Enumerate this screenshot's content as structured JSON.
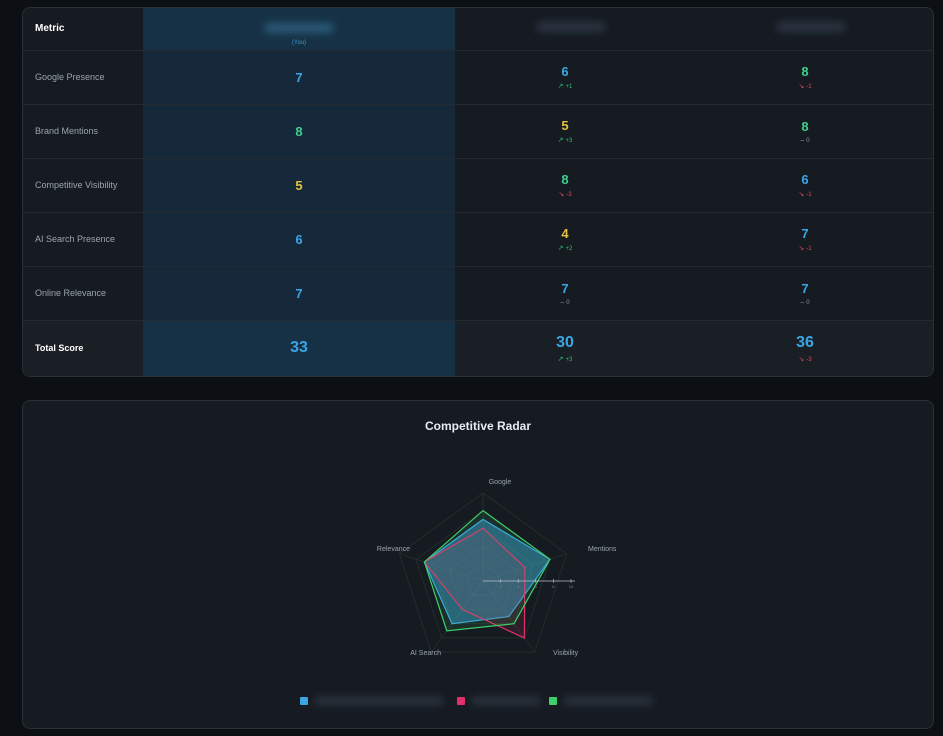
{
  "table": {
    "metric_header": "Metric",
    "you_label": "(You)",
    "rows": [
      {
        "metric": "Google Presence",
        "you": "7",
        "you_color": "blue",
        "c1": {
          "score": "6",
          "color": "blue",
          "delta": "+1",
          "dir": "up"
        },
        "c2": {
          "score": "8",
          "color": "green",
          "delta": "-1",
          "dir": "down"
        }
      },
      {
        "metric": "Brand Mentions",
        "you": "8",
        "you_color": "green",
        "c1": {
          "score": "5",
          "color": "yellow",
          "delta": "+3",
          "dir": "up"
        },
        "c2": {
          "score": "8",
          "color": "green",
          "delta": "0",
          "dir": "flat"
        }
      },
      {
        "metric": "Competitive Visibility",
        "you": "5",
        "you_color": "yellow",
        "c1": {
          "score": "8",
          "color": "green",
          "delta": "-3",
          "dir": "down"
        },
        "c2": {
          "score": "6",
          "color": "blue",
          "delta": "-1",
          "dir": "down"
        }
      },
      {
        "metric": "AI Search Presence",
        "you": "6",
        "you_color": "blue",
        "c1": {
          "score": "4",
          "color": "yellow",
          "delta": "+2",
          "dir": "up"
        },
        "c2": {
          "score": "7",
          "color": "blue",
          "delta": "-1",
          "dir": "down"
        }
      },
      {
        "metric": "Online Relevance",
        "you": "7",
        "you_color": "blue",
        "c1": {
          "score": "7",
          "color": "blue",
          "delta": "0",
          "dir": "flat"
        },
        "c2": {
          "score": "7",
          "color": "blue",
          "delta": "0",
          "dir": "flat"
        }
      }
    ],
    "total": {
      "metric": "Total Score",
      "you": "33",
      "c1": {
        "score": "30",
        "delta": "+3",
        "dir": "up"
      },
      "c2": {
        "score": "36",
        "delta": "-3",
        "dir": "down"
      }
    }
  },
  "colors": {
    "blue": "#3aa6e6",
    "green": "#3fcf8e",
    "yellow": "#e7c13c",
    "pink": "#e0306a",
    "accent_you": "#163145"
  },
  "radar": {
    "title": "Competitive Radar",
    "chart_data": {
      "type": "radar",
      "axes": [
        "Google",
        "Mentions",
        "Visibility",
        "AI Search",
        "Relevance"
      ],
      "range": [
        0,
        10
      ],
      "ticks": [
        "2",
        "4",
        "6",
        "8",
        "10"
      ],
      "series": [
        {
          "color": "#3aa6e6",
          "values": [
            7,
            8,
            5,
            6,
            7
          ]
        },
        {
          "color": "#e0306a",
          "values": [
            6,
            5,
            8,
            4,
            7
          ]
        },
        {
          "color": "#3fcf6a",
          "values": [
            8,
            8,
            6,
            7,
            7
          ]
        }
      ]
    }
  }
}
